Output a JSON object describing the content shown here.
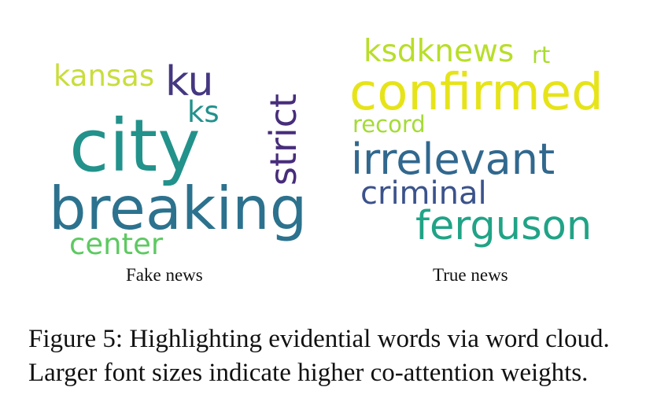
{
  "clouds": [
    {
      "label": "Fake news",
      "words": [
        {
          "text": "kansas",
          "color": "#c9dd3c"
        },
        {
          "text": "ku",
          "color": "#453781"
        },
        {
          "text": "ks",
          "color": "#21918c"
        },
        {
          "text": "strict",
          "color": "#472d7b"
        },
        {
          "text": "city",
          "color": "#22928b"
        },
        {
          "text": "breaking",
          "color": "#2c728e"
        },
        {
          "text": "center",
          "color": "#5ec962"
        }
      ]
    },
    {
      "label": "True news",
      "words": [
        {
          "text": "ksdknews",
          "color": "#b8de29"
        },
        {
          "text": "rt",
          "color": "#aadc32"
        },
        {
          "text": "confirmed",
          "color": "#e6e419"
        },
        {
          "text": "record",
          "color": "#a5db36"
        },
        {
          "text": "irrelevant",
          "color": "#31688e"
        },
        {
          "text": "criminal",
          "color": "#3b528b"
        },
        {
          "text": "ferguson",
          "color": "#20a386"
        }
      ]
    }
  ],
  "figure_caption": {
    "line1": "Figure 5: Highlighting evidential words via word cloud.",
    "line2": "Larger font sizes indicate higher co-attention weights."
  }
}
